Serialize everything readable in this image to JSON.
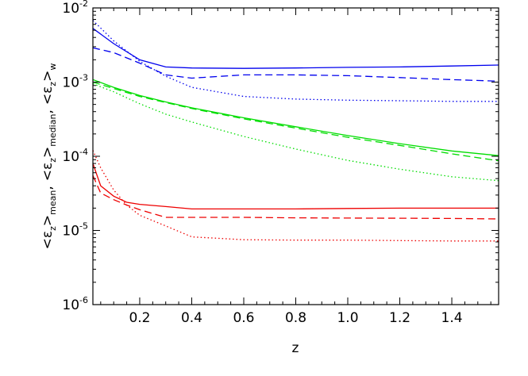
{
  "chart_data": {
    "type": "line",
    "xlabel": "z",
    "ylabel": {
      "prefix": "<",
      "symbol": "ε",
      "subscript": "z",
      "suffix": ">",
      "parts": [
        "mean",
        "median",
        "w"
      ],
      "separator": ","
    },
    "xlim": [
      0.02,
      1.58
    ],
    "ylim": [
      1e-06,
      0.01
    ],
    "yscale": "log",
    "x_ticks": [
      0.2,
      0.4,
      0.6,
      0.8,
      1.0,
      1.2,
      1.4
    ],
    "x_tick_labels": [
      "0.2",
      "0.4",
      "0.6",
      "0.8",
      "1.0",
      "1.2",
      "1.4"
    ],
    "y_ticks": [
      {
        "value": 1e-06,
        "base": "10",
        "exp": "-6"
      },
      {
        "value": 1e-05,
        "base": "10",
        "exp": "-5"
      },
      {
        "value": 0.0001,
        "base": "10",
        "exp": "-4"
      },
      {
        "value": 0.001,
        "base": "10",
        "exp": "-3"
      },
      {
        "value": 0.01,
        "base": "10",
        "exp": "-2"
      }
    ],
    "grid": false,
    "series": [
      {
        "color": "#0000ee",
        "style": "solid",
        "x": [
          0.02,
          0.1,
          0.2,
          0.3,
          0.4,
          0.6,
          0.8,
          1.0,
          1.2,
          1.4,
          1.58
        ],
        "y": [
          0.0053,
          0.0033,
          0.002,
          0.0016,
          0.00155,
          0.00153,
          0.00155,
          0.00158,
          0.0016,
          0.00165,
          0.0017
        ]
      },
      {
        "color": "#0000ee",
        "style": "dashed",
        "x": [
          0.02,
          0.1,
          0.2,
          0.3,
          0.4,
          0.6,
          0.8,
          1.0,
          1.2,
          1.4,
          1.58
        ],
        "y": [
          0.0029,
          0.0025,
          0.0018,
          0.00125,
          0.00113,
          0.00125,
          0.00125,
          0.00122,
          0.00115,
          0.00108,
          0.00103
        ]
      },
      {
        "color": "#0000ee",
        "style": "dotted",
        "x": [
          0.02,
          0.1,
          0.2,
          0.3,
          0.4,
          0.6,
          0.8,
          1.0,
          1.2,
          1.4,
          1.58
        ],
        "y": [
          0.0068,
          0.0036,
          0.0019,
          0.0012,
          0.00085,
          0.00064,
          0.00059,
          0.00057,
          0.00056,
          0.00055,
          0.00055
        ]
      },
      {
        "color": "#00dd00",
        "style": "solid",
        "x": [
          0.02,
          0.1,
          0.2,
          0.3,
          0.4,
          0.6,
          0.8,
          1.0,
          1.2,
          1.4,
          1.58
        ],
        "y": [
          0.00108,
          0.00085,
          0.00066,
          0.00054,
          0.00045,
          0.00033,
          0.00025,
          0.00019,
          0.000148,
          0.000118,
          0.000102
        ]
      },
      {
        "color": "#00dd00",
        "style": "dashed",
        "x": [
          0.02,
          0.1,
          0.2,
          0.3,
          0.4,
          0.6,
          0.8,
          1.0,
          1.2,
          1.4,
          1.58
        ],
        "y": [
          0.001,
          0.00082,
          0.00064,
          0.00053,
          0.00044,
          0.00032,
          0.00024,
          0.00018,
          0.00014,
          0.000108,
          8.7e-05
        ]
      },
      {
        "color": "#00dd00",
        "style": "dotted",
        "x": [
          0.02,
          0.1,
          0.2,
          0.3,
          0.4,
          0.6,
          0.8,
          1.0,
          1.2,
          1.4,
          1.58
        ],
        "y": [
          0.00095,
          0.00074,
          0.00051,
          0.00037,
          0.00029,
          0.000185,
          0.000125,
          8.8e-05,
          6.7e-05,
          5.3e-05,
          4.7e-05
        ]
      },
      {
        "color": "#ee0000",
        "style": "solid",
        "x": [
          0.02,
          0.05,
          0.1,
          0.15,
          0.2,
          0.3,
          0.4,
          0.6,
          0.8,
          1.0,
          1.2,
          1.4,
          1.58
        ],
        "y": [
          8e-05,
          4e-05,
          2.9e-05,
          2.4e-05,
          2.25e-05,
          2.1e-05,
          1.95e-05,
          1.95e-05,
          1.95e-05,
          1.98e-05,
          2e-05,
          2e-05,
          2e-05
        ]
      },
      {
        "color": "#ee0000",
        "style": "dashed",
        "x": [
          0.02,
          0.05,
          0.1,
          0.15,
          0.2,
          0.3,
          0.4,
          0.6,
          0.8,
          1.0,
          1.2,
          1.4,
          1.58
        ],
        "y": [
          5.5e-05,
          3.2e-05,
          2.6e-05,
          2.2e-05,
          1.9e-05,
          1.5e-05,
          1.5e-05,
          1.5e-05,
          1.48e-05,
          1.47e-05,
          1.46e-05,
          1.45e-05,
          1.43e-05
        ]
      },
      {
        "color": "#ee0000",
        "style": "dotted",
        "x": [
          0.02,
          0.05,
          0.1,
          0.15,
          0.2,
          0.3,
          0.4,
          0.6,
          0.8,
          1.0,
          1.2,
          1.4,
          1.58
        ],
        "y": [
          0.00012,
          7e-05,
          3.5e-05,
          2.2e-05,
          1.6e-05,
          1.15e-05,
          8.2e-06,
          7.5e-06,
          7.4e-06,
          7.4e-06,
          7.3e-06,
          7.2e-06,
          7.2e-06
        ]
      }
    ]
  }
}
